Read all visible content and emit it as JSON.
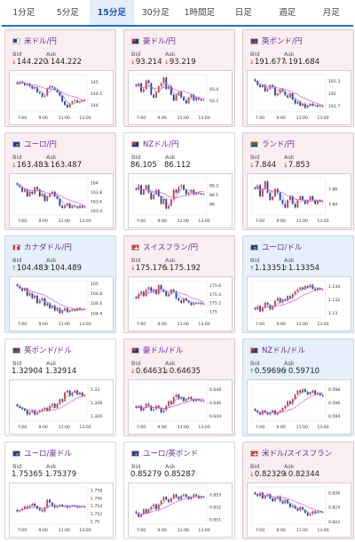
{
  "tabs": [
    "1分足",
    "5分足",
    "15分足",
    "30分足",
    "1時間足",
    "日足",
    "週足",
    "月足"
  ],
  "active_tab": 2,
  "labels": {
    "bid": "Bid",
    "ask": "Ask"
  },
  "colors": {
    "accent": "#1a73c9",
    "pair_name": "#6a2ba6",
    "down": "#d4323a",
    "up": "#1e9b5a",
    "candle_up": "#d43838",
    "candle_down": "#1e3c9a",
    "ma_short": "#7a9ad6",
    "ma_long": "#d75ad6"
  },
  "cards": [
    {
      "name": "米ドル/円",
      "flag": "us",
      "trend": "down",
      "bid": "144.220",
      "ask": "144.222",
      "yticks": [
        "145",
        "144.5",
        "144"
      ],
      "ymax": 145.3,
      "ymin": 143.7,
      "xticks": [
        "7:00",
        "9:00",
        "11:00",
        "13:00"
      ],
      "closes": [
        144.9,
        145.0,
        144.95,
        144.85,
        144.9,
        144.8,
        144.7,
        144.75,
        144.55,
        144.5,
        144.35,
        144.4,
        144.7,
        144.8,
        144.75,
        144.65,
        144.55,
        144.4,
        144.15,
        144.0,
        143.9,
        144.05,
        144.15,
        144.2,
        144.1,
        144.15,
        144.2,
        144.22
      ]
    },
    {
      "name": "豪ドル/円",
      "flag": "au",
      "trend": "down",
      "bid": "93.214",
      "ask": "93.219",
      "yticks": [
        "93.4",
        "93.2"
      ],
      "ymax": 93.65,
      "ymin": 93.0,
      "xticks": [
        "7:00",
        "9:00",
        "11:00",
        "13:00"
      ],
      "closes": [
        93.45,
        93.5,
        93.35,
        93.4,
        93.55,
        93.5,
        93.3,
        93.25,
        93.35,
        93.45,
        93.5,
        93.6,
        93.4,
        93.45,
        93.3,
        93.2,
        93.3,
        93.35,
        93.25,
        93.2,
        93.15,
        93.25,
        93.3,
        93.2,
        93.25,
        93.22,
        93.2,
        93.21
      ]
    },
    {
      "name": "英ポンド/円",
      "flag": "gb",
      "trend": "down",
      "bid": "191.677",
      "ask": "191.684",
      "yticks": [
        "192.3",
        "192",
        "191.7"
      ],
      "ymax": 192.45,
      "ymin": 191.55,
      "xticks": [
        "7:00",
        "9:00",
        "11:00",
        "13:00"
      ],
      "closes": [
        192.3,
        192.2,
        192.15,
        192.2,
        192.05,
        192.1,
        192.2,
        192.15,
        191.95,
        192.0,
        192.1,
        192.05,
        191.95,
        191.9,
        192.0,
        191.85,
        191.75,
        191.8,
        191.7,
        191.75,
        191.65,
        191.7,
        191.75,
        191.7,
        191.72,
        191.68,
        191.7,
        191.68
      ]
    },
    {
      "name": "ユーロ/円",
      "flag": "eu",
      "trend": "down",
      "bid": "163.483",
      "ask": "163.487",
      "yticks": [
        "164",
        "163.8",
        "163.6",
        "163.4"
      ],
      "ymax": 164.1,
      "ymin": 163.3,
      "xticks": [
        "7:00",
        "9:00",
        "11:00",
        "13:00"
      ],
      "closes": [
        163.95,
        163.9,
        163.8,
        163.85,
        163.7,
        163.8,
        163.75,
        163.9,
        163.85,
        163.7,
        163.75,
        163.6,
        163.7,
        163.75,
        163.8,
        163.7,
        163.65,
        163.5,
        163.45,
        163.5,
        163.55,
        163.45,
        163.5,
        163.48,
        163.45,
        163.5,
        163.46,
        163.48
      ]
    },
    {
      "name": "NZドル/円",
      "flag": "nz",
      "trend": "flat",
      "bid": "86.105",
      "ask": "86.112",
      "yticks": [
        "86.2",
        "86.1",
        "86"
      ],
      "ymax": 86.28,
      "ymin": 85.88,
      "xticks": [
        "7:00",
        "9:00",
        "11:00",
        "13:00"
      ],
      "closes": [
        86.15,
        86.2,
        86.1,
        86.15,
        86.2,
        86.12,
        86.05,
        86.1,
        86.15,
        86.08,
        86.0,
        86.05,
        85.95,
        85.98,
        86.05,
        86.15,
        86.12,
        86.18,
        86.2,
        86.15,
        86.1,
        86.12,
        86.15,
        86.1,
        86.12,
        86.11,
        86.1,
        86.105
      ]
    },
    {
      "name": "ランド/円",
      "flag": "za",
      "trend": "down",
      "bid": "7.844",
      "ask": "7.853",
      "yticks": [
        "7.86",
        "7.84"
      ],
      "ymax": 7.875,
      "ymin": 7.825,
      "xticks": [
        "7:00",
        "9:00",
        "11:00",
        "13:00"
      ],
      "closes": [
        7.86,
        7.865,
        7.85,
        7.86,
        7.87,
        7.855,
        7.845,
        7.85,
        7.86,
        7.855,
        7.845,
        7.84,
        7.835,
        7.845,
        7.85,
        7.84,
        7.835,
        7.845,
        7.85,
        7.845,
        7.84,
        7.845,
        7.85,
        7.845,
        7.84,
        7.845,
        7.843,
        7.844
      ]
    },
    {
      "name": "カナダドル/円",
      "flag": "ca",
      "trend": "up",
      "bid": "104.483",
      "ask": "104.489",
      "yticks": [
        "105",
        "104.8",
        "104.6",
        "104.4"
      ],
      "ymax": 105.05,
      "ymin": 104.3,
      "xticks": [
        "7:00",
        "9:00",
        "11:00",
        "13:00"
      ],
      "closes": [
        104.95,
        104.9,
        104.85,
        104.9,
        104.75,
        104.8,
        104.7,
        104.75,
        104.6,
        104.65,
        104.7,
        104.55,
        104.6,
        104.5,
        104.55,
        104.45,
        104.5,
        104.4,
        104.45,
        104.5,
        104.42,
        104.45,
        104.48,
        104.45,
        104.5,
        104.47,
        104.48,
        104.483
      ]
    },
    {
      "name": "スイスフラン/円",
      "flag": "ch",
      "trend": "down",
      "bid": "175.176",
      "ask": "175.192",
      "yticks": [
        "175.6",
        "175.4",
        "175.2",
        "175"
      ],
      "ymax": 175.7,
      "ymin": 174.85,
      "xticks": [
        "7:00",
        "9:00",
        "11:00",
        "13:00"
      ],
      "closes": [
        175.3,
        175.4,
        175.45,
        175.35,
        175.5,
        175.55,
        175.45,
        175.5,
        175.4,
        175.6,
        175.5,
        175.45,
        175.35,
        175.4,
        175.5,
        175.45,
        175.3,
        175.25,
        175.2,
        175.3,
        175.25,
        175.2,
        175.15,
        175.2,
        175.18,
        175.2,
        175.17,
        175.176
      ]
    },
    {
      "name": "ユーロ/ドル",
      "flag": "eu",
      "trend": "up",
      "bid": "1.13351",
      "ask": "1.13354",
      "yticks": [
        "1.134",
        "1.132",
        "1.13"
      ],
      "ymax": 1.1348,
      "ymin": 1.1292,
      "xticks": [
        "7:00",
        "9:00",
        "11:00",
        "13:00"
      ],
      "closes": [
        1.1305,
        1.131,
        1.1302,
        1.1308,
        1.1315,
        1.1312,
        1.1305,
        1.131,
        1.1318,
        1.1322,
        1.1315,
        1.132,
        1.1318,
        1.1325,
        1.1322,
        1.1328,
        1.1332,
        1.1335,
        1.1338,
        1.1335,
        1.134,
        1.1338,
        1.1342,
        1.1336,
        1.1334,
        1.1337,
        1.1335,
        1.13351
      ]
    },
    {
      "name": "英ポンド/ドル",
      "flag": "gb",
      "trend": "flat",
      "bid": "1.32904",
      "ask": "1.32914",
      "yticks": [
        "1.33",
        "1.328",
        "1.326"
      ],
      "ymax": 1.3308,
      "ymin": 1.3252,
      "xticks": [
        "7:00",
        "9:00",
        "11:00",
        "13:00"
      ],
      "closes": [
        1.3275,
        1.3272,
        1.327,
        1.3268,
        1.3262,
        1.3265,
        1.3268,
        1.3262,
        1.3265,
        1.3268,
        1.327,
        1.3272,
        1.3268,
        1.3275,
        1.3278,
        1.3272,
        1.3278,
        1.3285,
        1.3282,
        1.3295,
        1.3298,
        1.329,
        1.3295,
        1.3298,
        1.3292,
        1.3295,
        1.329,
        1.32904
      ]
    },
    {
      "name": "豪ドル/ドル",
      "flag": "au",
      "trend": "down",
      "bid": "0.64631",
      "ask": "0.64635",
      "yticks": [
        "0.648",
        "0.646",
        "0.644"
      ],
      "ymax": 0.6488,
      "ymin": 0.6432,
      "xticks": [
        "7:00",
        "9:00",
        "11:00",
        "13:00"
      ],
      "closes": [
        0.6452,
        0.6455,
        0.6448,
        0.6452,
        0.6458,
        0.6455,
        0.6448,
        0.645,
        0.6455,
        0.6452,
        0.6445,
        0.6448,
        0.6455,
        0.6462,
        0.6458,
        0.6468,
        0.6472,
        0.6465,
        0.6468,
        0.6462,
        0.6465,
        0.6468,
        0.6465,
        0.6462,
        0.6465,
        0.6463,
        0.6462,
        0.64631
      ]
    },
    {
      "name": "NZドル/ドル",
      "flag": "nz",
      "trend": "up",
      "bid": "0.59696",
      "ask": "0.59710",
      "yticks": [
        "0.598",
        "0.596",
        "0.594"
      ],
      "ymax": 0.5988,
      "ymin": 0.5932,
      "xticks": [
        "7:00",
        "9:00",
        "11:00",
        "13:00"
      ],
      "closes": [
        0.5948,
        0.5945,
        0.5942,
        0.5948,
        0.5945,
        0.5942,
        0.5945,
        0.5948,
        0.5942,
        0.5945,
        0.5948,
        0.5952,
        0.5955,
        0.5962,
        0.5958,
        0.5965,
        0.5972,
        0.5978,
        0.5975,
        0.598,
        0.5976,
        0.5972,
        0.5975,
        0.5978,
        0.5972,
        0.5974,
        0.5971,
        0.59696
      ]
    },
    {
      "name": "ユーロ/豪ドル",
      "flag": "eu",
      "trend": "flat",
      "bid": "1.75365",
      "ask": "1.75379",
      "yticks": [
        "1.758",
        "1.756",
        "1.754",
        "1.752",
        "1.75"
      ],
      "ymax": 1.7588,
      "ymin": 1.7492,
      "xticks": [
        "7:00",
        "9:00",
        "11:00",
        "13:00"
      ],
      "closes": [
        1.7525,
        1.7528,
        1.7532,
        1.7538,
        1.7535,
        1.754,
        1.7545,
        1.7538,
        1.7532,
        1.7528,
        1.7525,
        1.7535,
        1.7555,
        1.7548,
        1.754,
        1.7535,
        1.7538,
        1.7542,
        1.7538,
        1.754,
        1.7535,
        1.7538,
        1.754,
        1.7538,
        1.7535,
        1.7538,
        1.7537,
        1.75365
      ]
    },
    {
      "name": "ユーロ/英ポンド",
      "flag": "eu",
      "trend": "flat",
      "bid": "0.85279",
      "ask": "0.85287",
      "yticks": [
        "0.853",
        "0.852",
        "0.851"
      ],
      "ymax": 0.8536,
      "ymin": 0.8506,
      "xticks": [
        "7:00",
        "9:00",
        "11:00",
        "13:00"
      ],
      "closes": [
        0.8515,
        0.8512,
        0.8514,
        0.8518,
        0.8515,
        0.8518,
        0.852,
        0.8522,
        0.8518,
        0.8522,
        0.8525,
        0.8528,
        0.8526,
        0.8524,
        0.8527,
        0.853,
        0.8528,
        0.8526,
        0.8529,
        0.853,
        0.8528,
        0.8526,
        0.8528,
        0.853,
        0.8529,
        0.8527,
        0.8528,
        0.85279
      ]
    },
    {
      "name": "米ドル/スイスフラン",
      "flag": "ch",
      "trend": "down",
      "bid": "0.82329",
      "ask": "0.82344",
      "yticks": [
        "0.826",
        "0.824",
        "0.822"
      ],
      "ymax": 0.8268,
      "ymin": 0.8216,
      "xticks": [
        "7:00",
        "9:00",
        "11:00",
        "13:00"
      ],
      "closes": [
        0.8258,
        0.8255,
        0.826,
        0.8252,
        0.8255,
        0.8258,
        0.8252,
        0.8248,
        0.8252,
        0.8255,
        0.8248,
        0.8245,
        0.825,
        0.8245,
        0.824,
        0.8242,
        0.8238,
        0.8235,
        0.824,
        0.8236,
        0.8232,
        0.8228,
        0.823,
        0.8234,
        0.8232,
        0.8234,
        0.8233,
        0.82329
      ]
    }
  ]
}
